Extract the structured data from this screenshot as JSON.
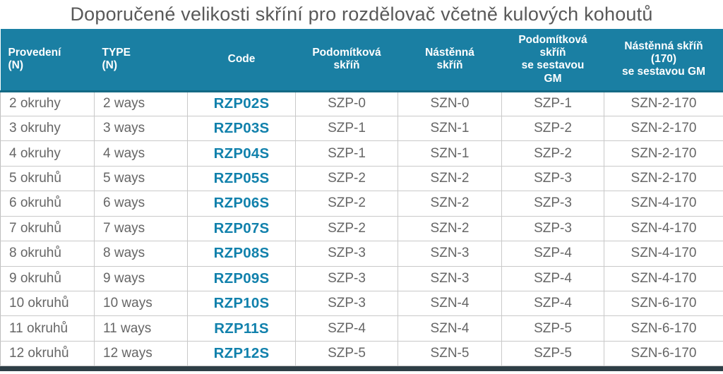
{
  "title": "Doporučené velikosti skříní pro rozdělovač včetně kulových kohoutů",
  "colors": {
    "header_bg": "#1a7fa3",
    "header_text": "#ffffff",
    "header_border_bottom": "#136a85",
    "title_text": "#595959",
    "body_text": "#666666",
    "code_text": "#1181ac",
    "row_border": "#c9c9c9",
    "bottom_bar": "#2e3e46"
  },
  "table": {
    "columns": [
      {
        "key": "provedeni",
        "label": "Provedení\n(N)",
        "align": "left"
      },
      {
        "key": "type",
        "label": "TYPE\n(N)",
        "align": "left"
      },
      {
        "key": "code",
        "label": "Code",
        "align": "center"
      },
      {
        "key": "podomitkova-skrin",
        "label": "Podomítková\nskříň",
        "align": "center"
      },
      {
        "key": "nastenna-skrin",
        "label": "Nástěnná\nskříň",
        "align": "center"
      },
      {
        "key": "podomitkova-skrin-gm",
        "label": "Podomítková\nskříň\nse sestavou\nGM",
        "align": "center"
      },
      {
        "key": "nastenna-skrin-170-gm",
        "label": "Nástěnná skříň\n(170)\nse sestavou GM",
        "align": "center"
      }
    ],
    "rows": [
      {
        "cells": [
          "2 okruhy",
          "2 ways",
          "RZP02S",
          "SZP-0",
          "SZN-0",
          "SZP-1",
          "SZN-2-170"
        ]
      },
      {
        "cells": [
          "3 okruhy",
          "3 ways",
          "RZP03S",
          "SZP-1",
          "SZN-1",
          "SZP-2",
          "SZN-2-170"
        ]
      },
      {
        "cells": [
          "4 okruhy",
          "4 ways",
          "RZP04S",
          "SZP-1",
          "SZN-1",
          "SZP-2",
          "SZN-2-170"
        ]
      },
      {
        "cells": [
          "5 okruhů",
          "5 ways",
          "RZP05S",
          "SZP-2",
          "SZN-2",
          "SZP-3",
          "SZN-2-170"
        ]
      },
      {
        "cells": [
          "6 okruhů",
          "6 ways",
          "RZP06S",
          "SZP-2",
          "SZN-2",
          "SZP-3",
          "SZN-4-170"
        ]
      },
      {
        "cells": [
          "7 okruhů",
          "7 ways",
          "RZP07S",
          "SZP-2",
          "SZN-2",
          "SZP-3",
          "SZN-4-170"
        ]
      },
      {
        "cells": [
          "8 okruhů",
          "8 ways",
          "RZP08S",
          "SZP-3",
          "SZN-3",
          "SZP-4",
          "SZN-4-170"
        ]
      },
      {
        "cells": [
          "9 okruhů",
          "9 ways",
          "RZP09S",
          "SZP-3",
          "SZN-3",
          "SZP-4",
          "SZN-4-170"
        ]
      },
      {
        "cells": [
          "10 okruhů",
          "10 ways",
          "RZP10S",
          "SZP-3",
          "SZN-4",
          "SZP-4",
          "SZN-6-170"
        ]
      },
      {
        "cells": [
          "11 okruhů",
          "11 ways",
          "RZP11S",
          "SZP-4",
          "SZN-4",
          "SZP-5",
          "SZN-6-170"
        ]
      },
      {
        "cells": [
          "12 okruhů",
          "12 ways",
          "RZP12S",
          "SZP-5",
          "SZN-5",
          "SZP-5",
          "SZN-6-170"
        ]
      }
    ]
  },
  "chart_data": {
    "type": "table",
    "title": "Doporučené velikosti skříní pro rozdělovač včetně kulových kohoutů",
    "columns": [
      "Provedení (N)",
      "TYPE (N)",
      "Code",
      "Podomítková skříň",
      "Nástěnná skříň",
      "Podomítková skříň se sestavou GM",
      "Nástěnná skříň (170) se sestavou GM"
    ],
    "rows": [
      [
        "2 okruhy",
        "2 ways",
        "RZP02S",
        "SZP-0",
        "SZN-0",
        "SZP-1",
        "SZN-2-170"
      ],
      [
        "3 okruhy",
        "3 ways",
        "RZP03S",
        "SZP-1",
        "SZN-1",
        "SZP-2",
        "SZN-2-170"
      ],
      [
        "4 okruhy",
        "4 ways",
        "RZP04S",
        "SZP-1",
        "SZN-1",
        "SZP-2",
        "SZN-2-170"
      ],
      [
        "5 okruhů",
        "5 ways",
        "RZP05S",
        "SZP-2",
        "SZN-2",
        "SZP-3",
        "SZN-2-170"
      ],
      [
        "6 okruhů",
        "6 ways",
        "RZP06S",
        "SZP-2",
        "SZN-2",
        "SZP-3",
        "SZN-4-170"
      ],
      [
        "7 okruhů",
        "7 ways",
        "RZP07S",
        "SZP-2",
        "SZN-2",
        "SZP-3",
        "SZN-4-170"
      ],
      [
        "8 okruhů",
        "8 ways",
        "RZP08S",
        "SZP-3",
        "SZN-3",
        "SZP-4",
        "SZN-4-170"
      ],
      [
        "9 okruhů",
        "9 ways",
        "RZP09S",
        "SZP-3",
        "SZN-3",
        "SZP-4",
        "SZN-4-170"
      ],
      [
        "10 okruhů",
        "10 ways",
        "RZP10S",
        "SZP-3",
        "SZN-4",
        "SZP-4",
        "SZN-6-170"
      ],
      [
        "11 okruhů",
        "11 ways",
        "RZP11S",
        "SZP-4",
        "SZN-4",
        "SZP-5",
        "SZN-6-170"
      ],
      [
        "12 okruhů",
        "12 ways",
        "RZP12S",
        "SZP-5",
        "SZN-5",
        "SZP-5",
        "SZN-6-170"
      ]
    ]
  }
}
